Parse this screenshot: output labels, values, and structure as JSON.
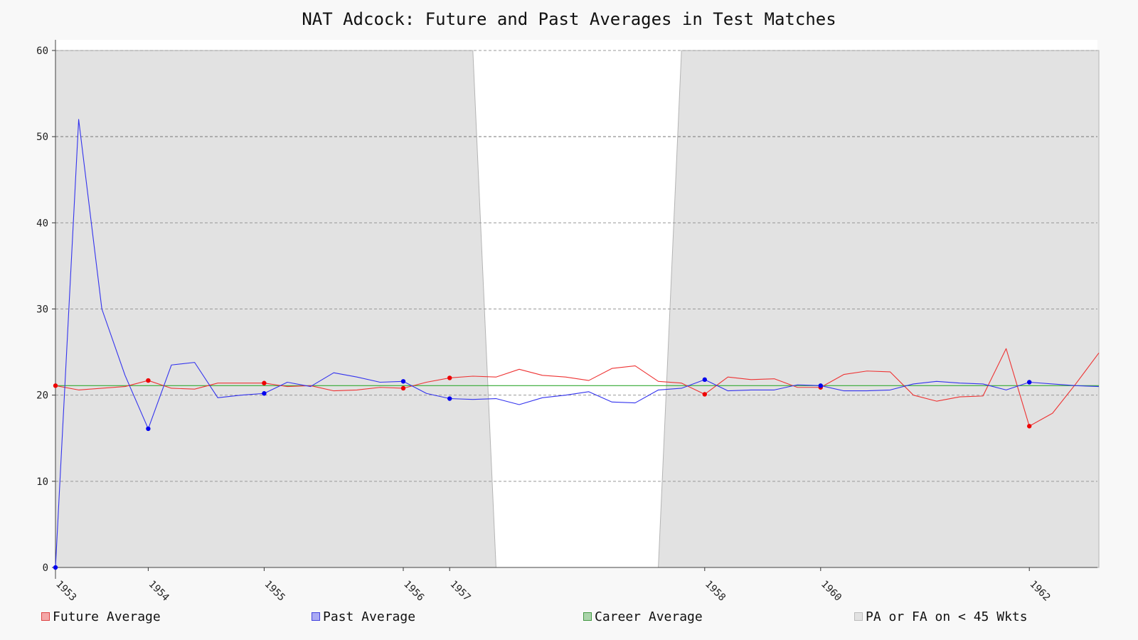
{
  "chart_data": {
    "type": "line",
    "title": "NAT Adcock: Future and Past Averages in Test Matches",
    "xlabel": "",
    "ylabel": "",
    "ylim": [
      0,
      60
    ],
    "yticks": [
      0,
      10,
      20,
      30,
      40,
      50,
      60
    ],
    "x_tick_labels": [
      {
        "index": 0,
        "label": "1953"
      },
      {
        "index": 4,
        "label": "1954"
      },
      {
        "index": 9,
        "label": "1955"
      },
      {
        "index": 15,
        "label": "1956"
      },
      {
        "index": 17,
        "label": "1957"
      },
      {
        "index": 28,
        "label": "1958"
      },
      {
        "index": 33,
        "label": "1960"
      },
      {
        "index": 42,
        "label": "1962"
      }
    ],
    "grid": true,
    "legend_position": "bottom",
    "series": [
      {
        "name": "Future Average",
        "color": "#ee3333",
        "marker_indices": [
          0,
          4,
          9,
          15,
          17,
          28,
          33,
          42
        ],
        "values": [
          21.1,
          20.6,
          20.8,
          21.0,
          21.7,
          20.8,
          20.7,
          21.4,
          21.4,
          21.4,
          21.0,
          21.1,
          20.5,
          20.6,
          20.9,
          20.8,
          21.5,
          22.0,
          22.2,
          22.1,
          23.0,
          22.3,
          22.1,
          21.7,
          23.1,
          23.4,
          21.6,
          21.4,
          20.1,
          22.1,
          21.8,
          21.9,
          20.9,
          20.9,
          22.4,
          22.8,
          22.7,
          20.0,
          19.3,
          19.8,
          19.9,
          25.4,
          16.4,
          17.9,
          21.3,
          24.9
        ]
      },
      {
        "name": "Past Average",
        "color": "#3333ee",
        "marker_indices": [
          0,
          4,
          9,
          15,
          17,
          28,
          33,
          42
        ],
        "values": [
          0,
          52.0,
          30.0,
          22.3,
          16.1,
          23.5,
          23.8,
          19.7,
          20.0,
          20.2,
          21.5,
          21.0,
          22.6,
          22.1,
          21.5,
          21.6,
          20.2,
          19.6,
          19.5,
          19.6,
          18.9,
          19.7,
          20.0,
          20.4,
          19.2,
          19.1,
          20.6,
          20.8,
          21.8,
          20.5,
          20.6,
          20.6,
          21.2,
          21.1,
          20.5,
          20.5,
          20.6,
          21.3,
          21.6,
          21.4,
          21.3,
          20.6,
          21.5,
          21.3,
          21.1,
          21.0
        ]
      },
      {
        "name": "Career Average",
        "color": "#33aa33",
        "marker_indices": [],
        "values": [
          21.1,
          21.1,
          21.1,
          21.1,
          21.1,
          21.1,
          21.1,
          21.1,
          21.1,
          21.1,
          21.1,
          21.1,
          21.1,
          21.1,
          21.1,
          21.1,
          21.1,
          21.1,
          21.1,
          21.1,
          21.1,
          21.1,
          21.1,
          21.1,
          21.1,
          21.1,
          21.1,
          21.1,
          21.1,
          21.1,
          21.1,
          21.1,
          21.1,
          21.1,
          21.1,
          21.1,
          21.1,
          21.1,
          21.1,
          21.1,
          21.1,
          21.1,
          21.1,
          21.1,
          21.1,
          21.1
        ]
      }
    ],
    "shaded_region": {
      "name": "PA or FA on < 45 Wkts",
      "color": "#e2e2e2",
      "values": [
        60,
        60,
        60,
        60,
        60,
        60,
        60,
        60,
        60,
        60,
        60,
        60,
        60,
        60,
        60,
        60,
        60,
        60,
        60,
        0,
        0,
        0,
        0,
        0,
        0,
        0,
        0,
        60,
        60,
        60,
        60,
        60,
        60,
        60,
        60,
        60,
        60,
        60,
        60,
        60,
        60,
        60,
        60,
        60,
        60,
        60
      ],
      "bottom_values": [
        0,
        0,
        0,
        0,
        0,
        0,
        0,
        0,
        0,
        0,
        0,
        0,
        0,
        0,
        0,
        0,
        0,
        0,
        0,
        0,
        0,
        0,
        0,
        0,
        0,
        0,
        0,
        0,
        0,
        0,
        0,
        0,
        0,
        0,
        0,
        0,
        0,
        0,
        0,
        0,
        0,
        0,
        0,
        0,
        0,
        0
      ]
    },
    "legend": [
      {
        "label": "Future Average",
        "fill": "#f4a8a8",
        "stroke": "#dd4444"
      },
      {
        "label": "Past Average",
        "fill": "#aaaaf4",
        "stroke": "#4444dd"
      },
      {
        "label": "Career Average",
        "fill": "#aad4aa",
        "stroke": "#449944"
      },
      {
        "label": "PA or FA on < 45 Wkts",
        "fill": "#e2e2e2",
        "stroke": "#bbbbbb"
      }
    ]
  }
}
